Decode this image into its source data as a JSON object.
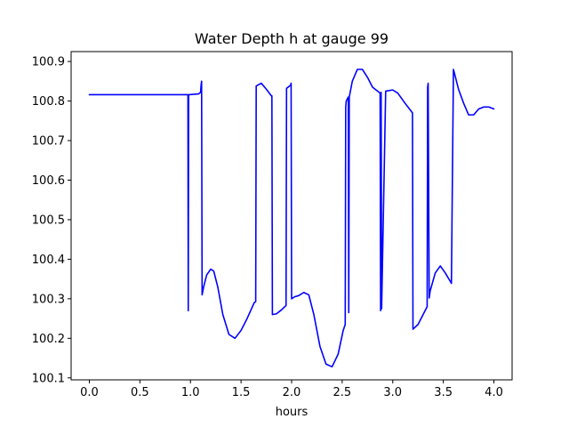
{
  "chart_data": {
    "type": "line",
    "title": "Water Depth h at gauge 99",
    "xlabel": "hours",
    "ylabel": "",
    "xlim": [
      -0.18,
      4.18
    ],
    "ylim": [
      100.095,
      100.925
    ],
    "x_ticks": [
      0.0,
      0.5,
      1.0,
      1.5,
      2.0,
      2.5,
      3.0,
      3.5,
      4.0
    ],
    "x_tick_labels": [
      "0.0",
      "0.5",
      "1.0",
      "1.5",
      "2.0",
      "2.5",
      "3.0",
      "3.5",
      "4.0"
    ],
    "y_ticks": [
      100.1,
      100.2,
      100.3,
      100.4,
      100.5,
      100.6,
      100.7,
      100.8,
      100.9
    ],
    "y_tick_labels": [
      "100.1",
      "100.2",
      "100.3",
      "100.4",
      "100.5",
      "100.6",
      "100.7",
      "100.8",
      "100.9"
    ],
    "grid": false,
    "series": [
      {
        "color": "#0000ff",
        "x": [
          0.0,
          0.97,
          0.975,
          0.978,
          0.982,
          0.986,
          1.08,
          1.1,
          1.105,
          1.11,
          1.115,
          1.13,
          1.16,
          1.2,
          1.23,
          1.27,
          1.32,
          1.38,
          1.44,
          1.5,
          1.56,
          1.63,
          1.645,
          1.65,
          1.7,
          1.75,
          1.8,
          1.805,
          1.81,
          1.85,
          1.9,
          1.945,
          1.95,
          1.99,
          1.995,
          2.0,
          2.03,
          2.07,
          2.12,
          2.17,
          2.22,
          2.28,
          2.34,
          2.4,
          2.46,
          2.51,
          2.53,
          2.535,
          2.54,
          2.56,
          2.565,
          2.57,
          2.6,
          2.65,
          2.7,
          2.75,
          2.8,
          2.875,
          2.88,
          2.885,
          2.89,
          2.93,
          3.0,
          3.05,
          3.12,
          3.195,
          3.2,
          3.25,
          3.3,
          3.34,
          3.345,
          3.35,
          3.36,
          3.365,
          3.37,
          3.42,
          3.47,
          3.52,
          3.58,
          3.6,
          3.605,
          3.65,
          3.7,
          3.75,
          3.8,
          3.85,
          3.9,
          3.95,
          4.0
        ],
        "y": [
          100.816,
          100.816,
          100.816,
          100.27,
          100.816,
          100.816,
          100.818,
          100.822,
          100.84,
          100.85,
          100.31,
          100.33,
          100.36,
          100.375,
          100.37,
          100.33,
          100.26,
          100.21,
          100.2,
          100.22,
          100.25,
          100.29,
          100.293,
          100.838,
          100.845,
          100.83,
          100.813,
          100.813,
          100.26,
          100.262,
          100.272,
          100.283,
          100.832,
          100.84,
          100.845,
          100.3,
          100.305,
          100.308,
          100.316,
          100.31,
          100.26,
          100.18,
          100.135,
          100.128,
          100.16,
          100.22,
          100.235,
          100.785,
          100.8,
          100.81,
          100.265,
          100.81,
          100.85,
          100.88,
          100.88,
          100.86,
          100.835,
          100.82,
          100.27,
          100.822,
          100.275,
          100.825,
          100.828,
          100.82,
          100.795,
          100.77,
          100.223,
          100.235,
          100.26,
          100.28,
          100.835,
          100.845,
          100.302,
          100.31,
          100.32,
          100.365,
          100.383,
          100.365,
          100.339,
          100.88,
          100.875,
          100.83,
          100.795,
          100.765,
          100.765,
          100.78,
          100.785,
          100.785,
          100.78
        ]
      }
    ]
  }
}
